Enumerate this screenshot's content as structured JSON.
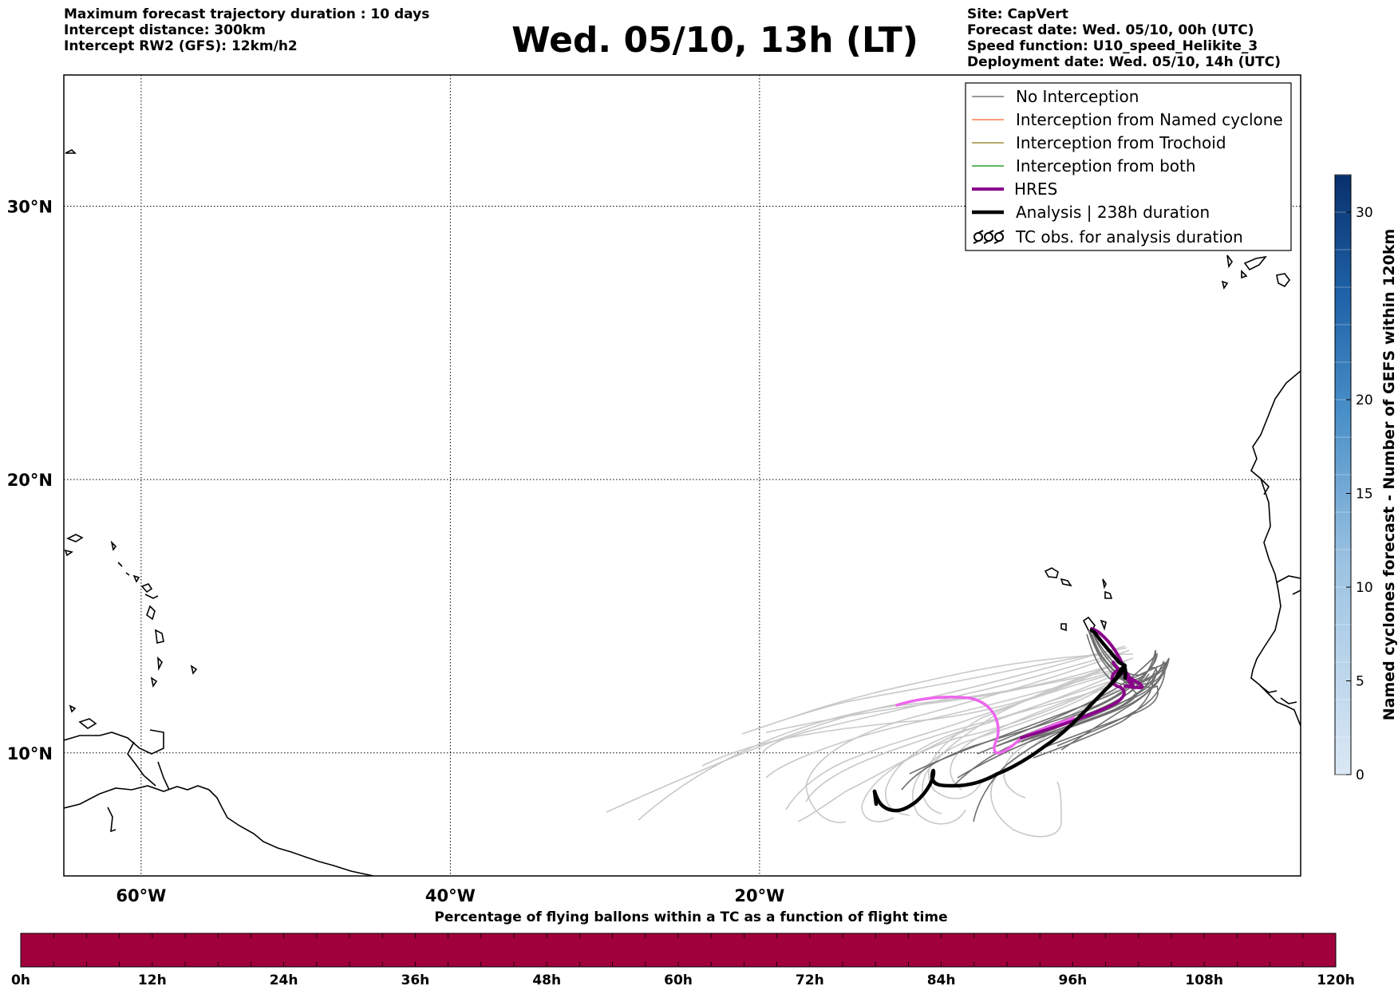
{
  "header": {
    "left_lines": [
      "Maximum forecast trajectory duration : 10 days",
      "Intercept distance: 300km",
      "Intercept RW2 (GFS):  12km/h2"
    ],
    "title": "Wed. 05/10, 13h (LT)",
    "right_lines": [
      "Site: CapVert",
      "Forecast date: Wed. 05/10, 00h (UTC)",
      "Speed function: U10_speed_Helikite_3",
      "Deployment date: Wed. 05/10, 14h (UTC)"
    ]
  },
  "map": {
    "lon_range": [
      -65,
      15
    ],
    "lat_range": [
      5.5,
      34.8
    ],
    "lon_ticks": [
      {
        "value": -60,
        "label": "60°W"
      },
      {
        "value": -40,
        "label": "40°W"
      },
      {
        "value": -20,
        "label": "20°W"
      }
    ],
    "lat_ticks": [
      {
        "value": 10,
        "label": "10°N"
      },
      {
        "value": 20,
        "label": "20°N"
      },
      {
        "value": 30,
        "label": "30°N"
      }
    ],
    "grid": true,
    "colors": {
      "no_interception": "#777777",
      "named_cyclone": "#ff7f50",
      "trochoid": "#9b8f3a",
      "both": "#2ca02c",
      "hres": "#8b008b",
      "hres_forecast": "#ee66ee",
      "analysis": "#000000",
      "ensemble_light": "#c8c8c8",
      "ensemble_dark": "#6e6e6e"
    }
  },
  "legend": {
    "items": [
      {
        "label": "No Interception",
        "style": "thin-gray"
      },
      {
        "label": "Interception from Named cyclone",
        "style": "thin-coral"
      },
      {
        "label": "Interception from Trochoid",
        "style": "thin-olive"
      },
      {
        "label": "Interception from both",
        "style": "thin-green"
      },
      {
        "label": "HRES",
        "style": "thick-purple"
      },
      {
        "label": "Analysis | 238h duration",
        "style": "thick-black"
      },
      {
        "label": "TC obs. for analysis duration",
        "style": "tc-symbol"
      }
    ]
  },
  "colorbar_right": {
    "label": "Named cyclones forecast - Number of GEFS within 120km",
    "ticks": [
      0,
      5,
      10,
      15,
      20,
      30
    ],
    "range": [
      0,
      32
    ],
    "color_low": "#dbe8f5",
    "color_high": "#08306b"
  },
  "colorbar_bottom": {
    "title": "Percentage of flying ballons within a TC as a function of flight time",
    "ticks": [
      "0h",
      "12h",
      "24h",
      "36h",
      "48h",
      "60h",
      "72h",
      "84h",
      "96h",
      "108h",
      "120h"
    ],
    "fill_color": "#a0003c"
  }
}
